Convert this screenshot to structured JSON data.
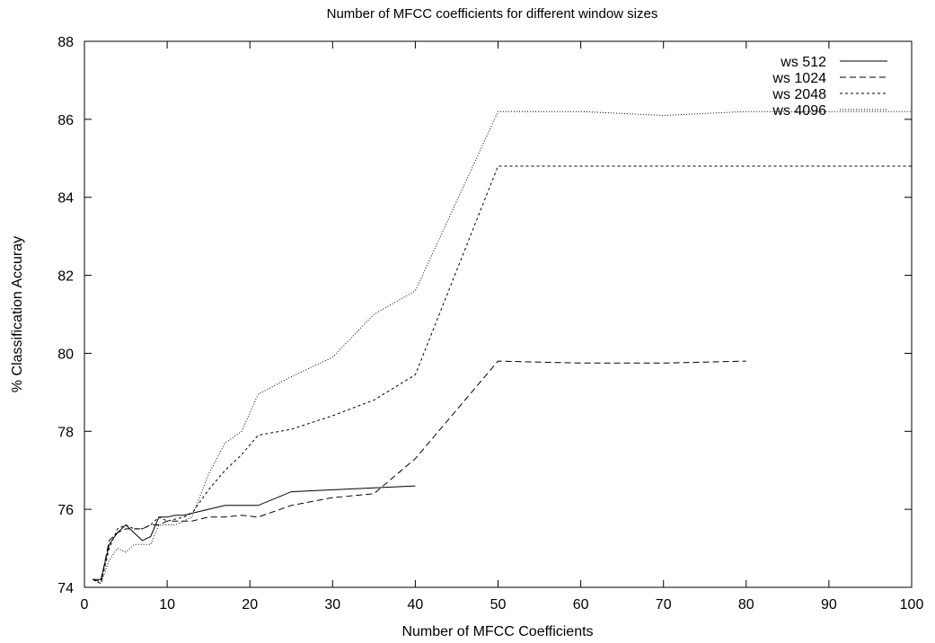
{
  "chart_data": {
    "type": "line",
    "title": "Number of MFCC coefficients for different window sizes",
    "xlabel": "Number of MFCC Coefficients",
    "ylabel": "% Classification Accuray",
    "xlim": [
      0,
      100
    ],
    "ylim": [
      74,
      88
    ],
    "xticks": [
      "0",
      "10",
      "20",
      "30",
      "40",
      "50",
      "60",
      "70",
      "80",
      "90",
      "100"
    ],
    "yticks": [
      "74",
      "76",
      "78",
      "80",
      "82",
      "84",
      "86",
      "88"
    ],
    "grid": false,
    "legend_position": "top-right",
    "series": [
      {
        "name": "ws 512",
        "style": "solid",
        "x": [
          1,
          2,
          3,
          4,
          5,
          6,
          7,
          8,
          9,
          10,
          11,
          12,
          13,
          15,
          17,
          19,
          21,
          25,
          30,
          35,
          40
        ],
        "y": [
          74.2,
          74.2,
          75.1,
          75.4,
          75.6,
          75.4,
          75.2,
          75.3,
          75.8,
          75.8,
          75.85,
          75.85,
          75.9,
          76.0,
          76.1,
          76.1,
          76.1,
          76.45,
          76.5,
          76.55,
          76.6
        ]
      },
      {
        "name": "ws 1024",
        "style": "dashed",
        "x": [
          1,
          2,
          3,
          4,
          5,
          6,
          7,
          8,
          9,
          10,
          11,
          12,
          13,
          15,
          17,
          19,
          21,
          25,
          30,
          35,
          40,
          50,
          60,
          70,
          80
        ],
        "y": [
          74.2,
          74.15,
          75.2,
          75.4,
          75.5,
          75.5,
          75.5,
          75.6,
          75.6,
          75.7,
          75.7,
          75.7,
          75.7,
          75.8,
          75.8,
          75.85,
          75.8,
          76.1,
          76.3,
          76.4,
          77.3,
          79.8,
          79.75,
          79.75,
          79.8
        ]
      },
      {
        "name": "ws 2048",
        "style": "short-dashed",
        "x": [
          1,
          2,
          3,
          4,
          5,
          6,
          7,
          8,
          9,
          10,
          11,
          12,
          13,
          15,
          17,
          19,
          21,
          25,
          30,
          35,
          40,
          50,
          60,
          70,
          80,
          90,
          100
        ],
        "y": [
          74.2,
          74.1,
          75.0,
          75.5,
          75.6,
          75.5,
          75.5,
          75.6,
          75.8,
          75.7,
          75.75,
          75.8,
          75.9,
          76.5,
          77.0,
          77.4,
          77.9,
          78.05,
          78.4,
          78.8,
          79.45,
          84.8,
          84.8,
          84.8,
          84.8,
          84.8,
          84.8
        ]
      },
      {
        "name": "ws 4096",
        "style": "dotted",
        "x": [
          1,
          2,
          3,
          4,
          5,
          6,
          7,
          8,
          9,
          10,
          11,
          12,
          13,
          15,
          17,
          19,
          21,
          25,
          30,
          35,
          40,
          50,
          60,
          70,
          80,
          90,
          100
        ],
        "y": [
          74.2,
          74.1,
          74.7,
          75.0,
          74.9,
          75.1,
          75.1,
          75.1,
          75.6,
          75.6,
          75.6,
          75.7,
          75.8,
          76.9,
          77.7,
          78.0,
          78.95,
          79.4,
          79.9,
          81.0,
          81.6,
          86.2,
          86.2,
          86.1,
          86.2,
          86.2,
          86.2
        ]
      }
    ]
  }
}
